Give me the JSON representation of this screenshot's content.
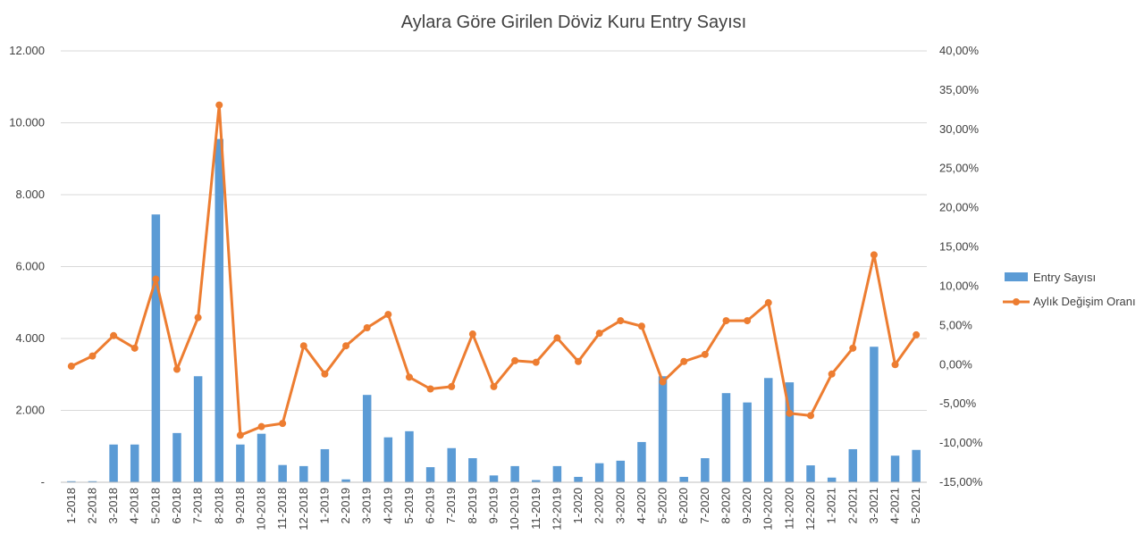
{
  "chart_data": {
    "type": "bar",
    "title": "Aylara Göre Girilen Döviz Kuru Entry Sayısı",
    "categories": [
      "1-2018",
      "2-2018",
      "3-2018",
      "4-2018",
      "5-2018",
      "6-2018",
      "7-2018",
      "8-2018",
      "9-2018",
      "10-2018",
      "11-2018",
      "12-2018",
      "1-2019",
      "2-2019",
      "3-2019",
      "4-2019",
      "5-2019",
      "6-2019",
      "7-2019",
      "8-2019",
      "9-2019",
      "10-2019",
      "11-2019",
      "12-2019",
      "1-2020",
      "2-2020",
      "3-2020",
      "4-2020",
      "5-2020",
      "6-2020",
      "7-2020",
      "8-2020",
      "9-2020",
      "10-2020",
      "11-2020",
      "12-2020",
      "1-2021",
      "2-2021",
      "3-2021",
      "4-2021",
      "5-2021"
    ],
    "series": [
      {
        "name": "Entry Sayısı",
        "type": "bar",
        "axis": "left",
        "color": "#5b9bd5",
        "values": [
          30,
          30,
          1050,
          1050,
          7450,
          1370,
          2950,
          9550,
          1050,
          1350,
          480,
          450,
          920,
          80,
          2430,
          1250,
          1420,
          420,
          950,
          670,
          190,
          450,
          60,
          450,
          150,
          530,
          600,
          1120,
          2950,
          150,
          670,
          2480,
          2220,
          2900,
          2780,
          470,
          130,
          920,
          3770,
          740,
          900
        ]
      },
      {
        "name": "Aylık Değişim Oranı",
        "type": "line",
        "axis": "right",
        "color": "#ed7d31",
        "values": [
          -0.2,
          1.1,
          3.7,
          2.1,
          10.9,
          -0.6,
          6.0,
          33.1,
          -9.0,
          -7.9,
          -7.5,
          2.4,
          -1.2,
          2.4,
          4.7,
          6.4,
          -1.6,
          -3.1,
          -2.8,
          3.9,
          -2.8,
          0.5,
          0.3,
          3.4,
          0.4,
          4.0,
          5.6,
          4.9,
          -2.2,
          0.4,
          1.3,
          5.6,
          5.6,
          7.9,
          -6.2,
          -6.5,
          -1.2,
          2.1,
          14.0,
          0.0,
          3.8
        ]
      }
    ],
    "y_left": {
      "min": 0,
      "max": 12000,
      "ticks": [
        {
          "value": 0,
          "label": "-"
        },
        {
          "value": 2000,
          "label": "2.000"
        },
        {
          "value": 4000,
          "label": "4.000"
        },
        {
          "value": 6000,
          "label": "6.000"
        },
        {
          "value": 8000,
          "label": "8.000"
        },
        {
          "value": 10000,
          "label": "10.000"
        },
        {
          "value": 12000,
          "label": "12.000"
        }
      ]
    },
    "y_right": {
      "min": -15,
      "max": 40,
      "ticks": [
        {
          "value": -15,
          "label": "-15,00%"
        },
        {
          "value": -10,
          "label": "-10,00%"
        },
        {
          "value": -5,
          "label": "-5,00%"
        },
        {
          "value": 0,
          "label": "0,00%"
        },
        {
          "value": 5,
          "label": "5,00%"
        },
        {
          "value": 10,
          "label": "10,00%"
        },
        {
          "value": 15,
          "label": "15,00%"
        },
        {
          "value": 20,
          "label": "20,00%"
        },
        {
          "value": 25,
          "label": "25,00%"
        },
        {
          "value": 30,
          "label": "30,00%"
        },
        {
          "value": 35,
          "label": "35,00%"
        },
        {
          "value": 40,
          "label": "40,00%"
        }
      ]
    },
    "grid": true,
    "legend": "right"
  }
}
